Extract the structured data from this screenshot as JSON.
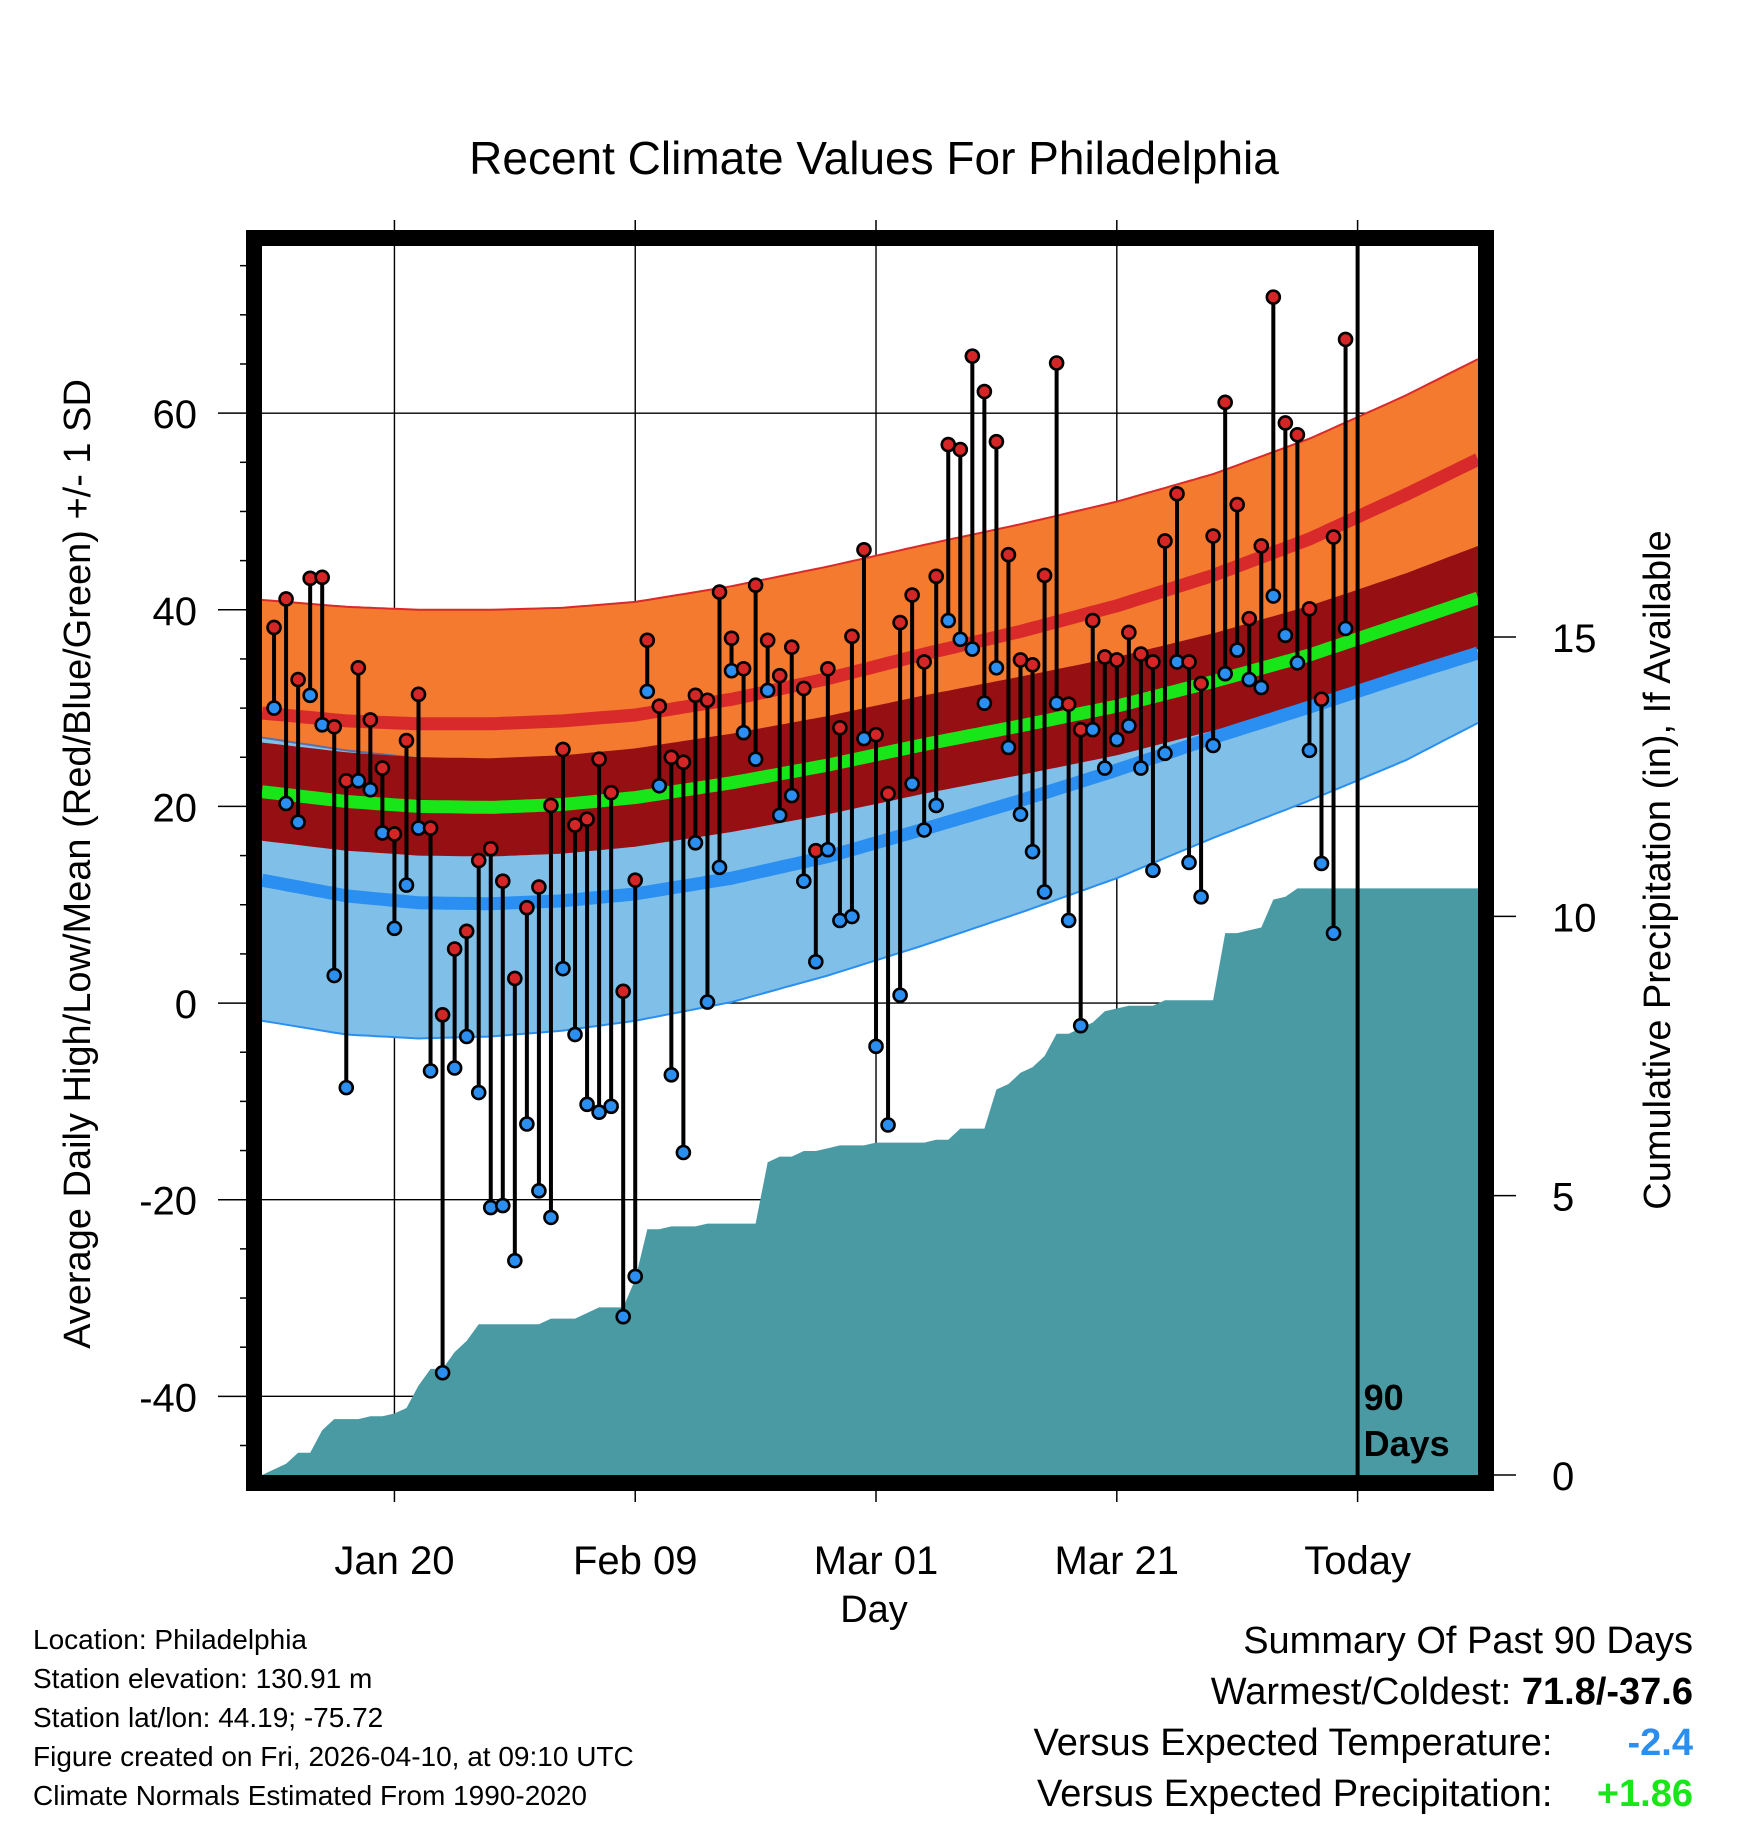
{
  "colors": {
    "high_band": "#f47a2f",
    "high_mean": "#d82a2a",
    "low_band": "#80c0e8",
    "low_mean": "#2a8ff0",
    "mean_band": "#960f12",
    "mean_line": "#19e619",
    "precip": "#4a9aa3",
    "high_dot": "#d42626",
    "low_dot": "#2a8ff0",
    "warm_cold_text": "#000000",
    "temp_anom_text": "#2a8ff0",
    "precip_anom_text": "#19e619"
  },
  "chart_data": {
    "type": "line",
    "title": "Recent Climate Values For Philadelphia",
    "xlabel": "Day",
    "ylabel": "Average Daily High/Low/Mean (Red/Blue/Green) +/- 1 SD",
    "y2label": "Cumulative Precipitation (in), If Available",
    "xlim": [
      1,
      102
    ],
    "ylim": [
      -48,
      77
    ],
    "y2lim": [
      0,
      22
    ],
    "x_ticks": [
      {
        "day": 12,
        "label": "Jan 20"
      },
      {
        "day": 32,
        "label": "Feb 09"
      },
      {
        "day": 52,
        "label": "Mar 01"
      },
      {
        "day": 72,
        "label": "Mar 21"
      },
      {
        "day": 92,
        "label": "Today"
      }
    ],
    "y_ticks": [
      -40,
      -20,
      0,
      20,
      40,
      60
    ],
    "y2_ticks": [
      0,
      5,
      10,
      15
    ],
    "today_day": 92,
    "today_label_line1": "90",
    "today_label_line2": "Days",
    "normals": {
      "days": [
        1,
        8,
        14,
        20,
        26,
        32,
        40,
        48,
        56,
        64,
        72,
        80,
        88,
        96,
        102
      ],
      "high_upper": [
        41,
        40.3,
        40,
        40,
        40.2,
        40.8,
        42.4,
        44.4,
        46.6,
        48.7,
        51,
        53.8,
        57.4,
        61.8,
        65.5
      ],
      "high_mean": [
        29.5,
        28.7,
        28.4,
        28.4,
        28.7,
        29.3,
        30.9,
        33,
        35.5,
        37.8,
        40.4,
        43.5,
        47.2,
        51.7,
        55.3
      ],
      "high_lower": [
        18,
        17.2,
        16.8,
        16.8,
        17.1,
        17.8,
        19.4,
        21.6,
        24.3,
        26.9,
        29.8,
        33.2,
        37,
        41.6,
        45.1
      ],
      "mean_upper": [
        26.5,
        25.5,
        25,
        24.9,
        25.2,
        25.9,
        27.4,
        29.2,
        31.3,
        33.2,
        35.2,
        37.6,
        40.4,
        43.7,
        46.5
      ],
      "mean_line": [
        21.5,
        20.5,
        20,
        19.9,
        20.2,
        20.9,
        22.4,
        24.2,
        26.3,
        28.2,
        30.2,
        32.7,
        35.4,
        38.7,
        41.2
      ],
      "mean_lower": [
        16.5,
        15.5,
        15,
        14.9,
        15.2,
        15.9,
        17.4,
        19.2,
        21.3,
        23.2,
        25.2,
        27.7,
        30.4,
        33.7,
        36
      ],
      "low_upper": [
        27,
        25.7,
        24.9,
        24.6,
        24.7,
        25.1,
        26.2,
        27.8,
        30,
        32.1,
        34.4,
        36.9,
        39.4,
        41.8,
        43.4
      ],
      "low_mean": [
        12.5,
        10.9,
        10.2,
        10.1,
        10.4,
        11.1,
        12.7,
        14.9,
        17.7,
        20.6,
        23.7,
        27,
        30.1,
        33.3,
        35.6
      ],
      "low_lower": [
        -1.8,
        -3.2,
        -3.6,
        -3.4,
        -2.8,
        -1.8,
        0.1,
        2.8,
        5.9,
        9.2,
        12.7,
        16.8,
        20.6,
        24.7,
        28.5
      ]
    },
    "series": [
      {
        "name": "Daily High",
        "values": [
          38.2,
          41.1,
          32.9,
          43.2,
          43.3,
          28.1,
          22.6,
          34.1,
          28.8,
          23.9,
          17.2,
          26.7,
          31.4,
          17.8,
          -1.2,
          5.5,
          7.3,
          14.5,
          15.7,
          12.4,
          2.5,
          9.7,
          11.8,
          20.1,
          25.8,
          18.1,
          18.7,
          24.8,
          21.4,
          1.2,
          12.5,
          36.9,
          30.2,
          25,
          24.5,
          31.3,
          30.8,
          41.8,
          37.1,
          34,
          42.5,
          36.9,
          33.3,
          36.2,
          32,
          15.5,
          34,
          28,
          37.3,
          46.1,
          27.3,
          21.3,
          38.7,
          41.5,
          34.7,
          43.4,
          56.8,
          56.3,
          65.8,
          62.2,
          57.1,
          45.6,
          34.9,
          34.4,
          43.5,
          65.1,
          30.4,
          27.8,
          38.9,
          35.2,
          34.9,
          37.7,
          35.5,
          34.7,
          47,
          51.8,
          34.7,
          32.5,
          47.5,
          61.1,
          50.7,
          39.1,
          46.5,
          71.8,
          59,
          57.8,
          40.1,
          30.9,
          47.4,
          67.5
        ]
      },
      {
        "name": "Daily Low",
        "values": [
          30,
          20.3,
          18.4,
          31.3,
          28.3,
          2.8,
          -8.6,
          22.6,
          21.7,
          17.3,
          7.6,
          12,
          17.8,
          -6.9,
          -37.6,
          -6.6,
          -3.4,
          -9.1,
          -20.8,
          -20.6,
          -26.2,
          -12.3,
          -19.1,
          -21.8,
          3.5,
          -3.2,
          -10.3,
          -11.1,
          -10.5,
          -31.9,
          -27.8,
          31.7,
          22.1,
          -7.3,
          -15.2,
          16.3,
          0.1,
          13.8,
          33.8,
          27.5,
          24.8,
          31.8,
          19.1,
          21.1,
          12.4,
          4.2,
          15.6,
          8.4,
          8.8,
          26.9,
          -4.4,
          -12.4,
          0.8,
          22.3,
          17.6,
          20.1,
          38.9,
          37,
          36,
          30.5,
          34.1,
          26,
          19.2,
          15.4,
          11.3,
          30.5,
          8.4,
          -2.3,
          27.8,
          23.9,
          26.8,
          28.2,
          23.9,
          13.5,
          25.4,
          34.7,
          14.3,
          10.8,
          26.2,
          33.5,
          35.9,
          32.9,
          32.1,
          41.4,
          37.4,
          34.6,
          25.7,
          14.2,
          7.1,
          38.1
        ]
      }
    ],
    "precipitation": {
      "days": [
        1,
        3,
        4,
        5,
        6,
        7,
        8,
        9,
        10,
        11,
        12,
        13,
        14,
        15,
        16,
        17,
        18,
        19,
        20,
        21,
        22,
        23,
        24,
        25,
        26,
        27,
        28,
        29,
        30,
        31,
        32,
        33,
        34,
        35,
        36,
        37,
        38,
        39,
        40,
        41,
        42,
        43,
        44,
        45,
        46,
        47,
        48,
        49,
        50,
        51,
        52,
        53,
        54,
        55,
        56,
        57,
        58,
        59,
        60,
        61,
        62,
        63,
        64,
        65,
        66,
        67,
        68,
        69,
        70,
        71,
        72,
        73,
        74,
        75,
        76,
        77,
        78,
        79,
        80,
        81,
        82,
        83,
        84,
        85,
        86,
        87,
        88,
        89,
        90,
        91,
        92,
        93,
        102
      ],
      "values": [
        0,
        0.2,
        0.4,
        0.4,
        0.8,
        1,
        1,
        1,
        1.05,
        1.05,
        1.1,
        1.2,
        1.6,
        1.9,
        1.9,
        2.2,
        2.4,
        2.7,
        2.7,
        2.7,
        2.7,
        2.7,
        2.7,
        2.8,
        2.8,
        2.8,
        2.9,
        3,
        3,
        3,
        3.5,
        4.4,
        4.4,
        4.45,
        4.45,
        4.45,
        4.5,
        4.5,
        4.5,
        4.5,
        4.5,
        5.6,
        5.7,
        5.7,
        5.8,
        5.8,
        5.85,
        5.9,
        5.9,
        5.9,
        5.95,
        5.95,
        5.95,
        5.95,
        5.95,
        6,
        6,
        6.2,
        6.2,
        6.2,
        6.9,
        7,
        7.2,
        7.3,
        7.5,
        7.9,
        7.9,
        8,
        8.1,
        8.3,
        8.35,
        8.4,
        8.4,
        8.4,
        8.5,
        8.5,
        8.5,
        8.5,
        8.5,
        9.7,
        9.7,
        9.75,
        9.8,
        10.3,
        10.35,
        10.5,
        10.5,
        10.5,
        10.5,
        10.5,
        10.5,
        10.5,
        10.5
      ]
    }
  },
  "footer_left": {
    "location": "Location: Philadelphia",
    "elevation": "Station elevation: 130.91 m",
    "latlon": "Station lat/lon: 44.19; -75.72",
    "created": "Figure created on Fri, 2026-04-10, at 09:10 UTC",
    "normals": "Climate Normals Estimated From 1990-2020"
  },
  "summary": {
    "heading": "Summary Of Past 90 Days",
    "warm_cold_label": "Warmest/Coldest:",
    "warm_cold_value": "71.8/-37.6",
    "temp_label": "Versus Expected Temperature:",
    "temp_value": "-2.4",
    "precip_label": "Versus Expected Precipitation:",
    "precip_value": "+1.86"
  }
}
